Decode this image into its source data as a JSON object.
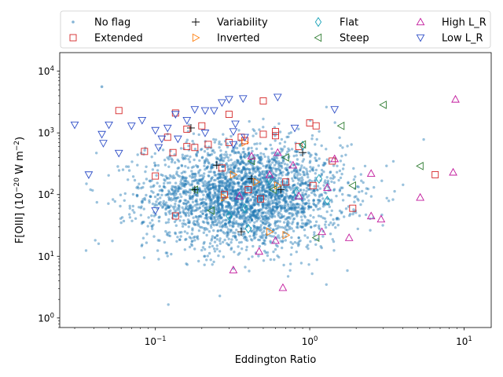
{
  "chart_data": {
    "type": "scatter",
    "title": "",
    "xlabel": "Eddington Ratio",
    "ylabel": "F[OIII] (10$^{-20}$ W m$^{-2}$)",
    "ylabel_parts": {
      "main": "F[OIII] (10",
      "exp1": "−20",
      "mid": " W m",
      "exp2": "−2",
      "end": ")"
    },
    "xscale": "log",
    "yscale": "log",
    "xlim": [
      0.024,
      15
    ],
    "ylim": [
      0.7,
      20000
    ],
    "x_ticks": [
      {
        "value": 0.1,
        "base": "10",
        "exp": "−1"
      },
      {
        "value": 1,
        "base": "10",
        "exp": "0"
      },
      {
        "value": 10,
        "base": "10",
        "exp": "1"
      }
    ],
    "y_ticks": [
      {
        "value": 1,
        "base": "10",
        "exp": "0"
      },
      {
        "value": 10,
        "base": "10",
        "exp": "1"
      },
      {
        "value": 100,
        "base": "10",
        "exp": "2"
      },
      {
        "value": 1000,
        "base": "10",
        "exp": "3"
      },
      {
        "value": 10000,
        "base": "10",
        "exp": "4"
      }
    ],
    "legend_position": "top",
    "background_cloud": {
      "name": "No flag",
      "color": "#1f77b4",
      "approx_count": 3000,
      "center": [
        0.38,
        95
      ],
      "log_spread": [
        0.32,
        0.42
      ]
    },
    "series": [
      {
        "name": "No flag",
        "marker": "dot",
        "color": "#1f77b4",
        "points": [
          [
            0.045,
            5600
          ],
          [
            0.24,
            230
          ],
          [
            0.35,
            95
          ],
          [
            0.55,
            130
          ],
          [
            0.9,
            60
          ],
          [
            1.5,
            40
          ]
        ]
      },
      {
        "name": "Extended",
        "marker": "square",
        "color": "#d62728",
        "points": [
          [
            0.058,
            2300
          ],
          [
            0.135,
            2100
          ],
          [
            0.16,
            1150
          ],
          [
            0.2,
            1300
          ],
          [
            0.12,
            850
          ],
          [
            0.3,
            2000
          ],
          [
            0.5,
            3300
          ],
          [
            0.6,
            1050
          ],
          [
            0.6,
            900
          ],
          [
            0.5,
            950
          ],
          [
            0.36,
            850
          ],
          [
            0.38,
            750
          ],
          [
            0.3,
            700
          ],
          [
            0.22,
            650
          ],
          [
            0.16,
            600
          ],
          [
            0.13,
            480
          ],
          [
            0.18,
            580
          ],
          [
            0.085,
            500
          ],
          [
            0.1,
            200
          ],
          [
            0.27,
            270
          ],
          [
            1.0,
            1450
          ],
          [
            1.1,
            1300
          ],
          [
            1.4,
            350
          ],
          [
            6.5,
            210
          ],
          [
            1.9,
            60
          ],
          [
            0.135,
            45
          ],
          [
            0.28,
            100
          ],
          [
            0.4,
            120
          ],
          [
            0.7,
            160
          ],
          [
            0.48,
            85
          ],
          [
            1.05,
            140
          ],
          [
            0.85,
            600
          ]
        ]
      },
      {
        "name": "Variability",
        "marker": "plus",
        "color": "#000000",
        "points": [
          [
            0.25,
            300
          ],
          [
            0.17,
            1200
          ],
          [
            0.42,
            180
          ],
          [
            0.65,
            120
          ],
          [
            0.36,
            25
          ],
          [
            0.9,
            480
          ],
          [
            0.18,
            120
          ]
        ]
      },
      {
        "name": "Inverted",
        "marker": "triangle-right",
        "color": "#ff7f0e",
        "points": [
          [
            0.38,
            700
          ],
          [
            0.45,
            160
          ],
          [
            0.55,
            25
          ],
          [
            0.7,
            22
          ],
          [
            0.28,
            90
          ],
          [
            0.32,
            210
          ],
          [
            0.62,
            140
          ]
        ]
      },
      {
        "name": "Flat",
        "marker": "diamond",
        "color": "#17a2b8",
        "points": [
          [
            0.3,
            45
          ],
          [
            0.4,
            28
          ],
          [
            1.15,
            180
          ],
          [
            1.3,
            80
          ],
          [
            0.82,
            110
          ],
          [
            0.55,
            170
          ],
          [
            0.38,
            60
          ],
          [
            0.9,
            620
          ]
        ]
      },
      {
        "name": "Steep",
        "marker": "triangle-left",
        "color": "#2f7d32",
        "points": [
          [
            3.0,
            2850
          ],
          [
            5.2,
            290
          ],
          [
            1.6,
            1300
          ],
          [
            1.9,
            140
          ],
          [
            0.9,
            650
          ],
          [
            0.7,
            400
          ],
          [
            0.42,
            350
          ],
          [
            0.58,
            120
          ],
          [
            0.23,
            55
          ],
          [
            0.18,
            120
          ],
          [
            1.1,
            20
          ]
        ]
      },
      {
        "name": "High L_R",
        "marker": "triangle-up",
        "color": "#c2189c",
        "points": [
          [
            8.8,
            3500
          ],
          [
            8.5,
            230
          ],
          [
            5.2,
            90
          ],
          [
            2.5,
            45
          ],
          [
            2.9,
            40
          ],
          [
            1.8,
            20
          ],
          [
            1.2,
            25
          ],
          [
            0.67,
            3.1
          ],
          [
            0.32,
            6
          ],
          [
            0.47,
            12
          ],
          [
            0.6,
            18
          ],
          [
            0.85,
            95
          ],
          [
            1.3,
            130
          ],
          [
            0.55,
            210
          ],
          [
            0.42,
            420
          ],
          [
            0.62,
            480
          ],
          [
            1.45,
            380
          ],
          [
            2.5,
            220
          ],
          [
            0.78,
            300
          ],
          [
            0.35,
            95
          ]
        ]
      },
      {
        "name": "Low L_R",
        "marker": "triangle-down",
        "color": "#2e4ec7",
        "points": [
          [
            0.03,
            1350
          ],
          [
            0.037,
            210
          ],
          [
            0.045,
            950
          ],
          [
            0.046,
            680
          ],
          [
            0.05,
            1350
          ],
          [
            0.058,
            470
          ],
          [
            0.07,
            1300
          ],
          [
            0.082,
            1600
          ],
          [
            0.1,
            1100
          ],
          [
            0.12,
            1200
          ],
          [
            0.11,
            800
          ],
          [
            0.105,
            580
          ],
          [
            0.135,
            2000
          ],
          [
            0.18,
            2400
          ],
          [
            0.16,
            1600
          ],
          [
            0.21,
            2300
          ],
          [
            0.24,
            2300
          ],
          [
            0.27,
            3100
          ],
          [
            0.3,
            3500
          ],
          [
            0.33,
            1400
          ],
          [
            0.37,
            3600
          ],
          [
            0.62,
            3800
          ],
          [
            1.45,
            2400
          ],
          [
            0.8,
            1200
          ],
          [
            0.21,
            1000
          ],
          [
            0.32,
            1050
          ],
          [
            0.38,
            850
          ],
          [
            0.14,
            800
          ],
          [
            0.32,
            650
          ],
          [
            0.1,
            55
          ]
        ]
      }
    ]
  }
}
